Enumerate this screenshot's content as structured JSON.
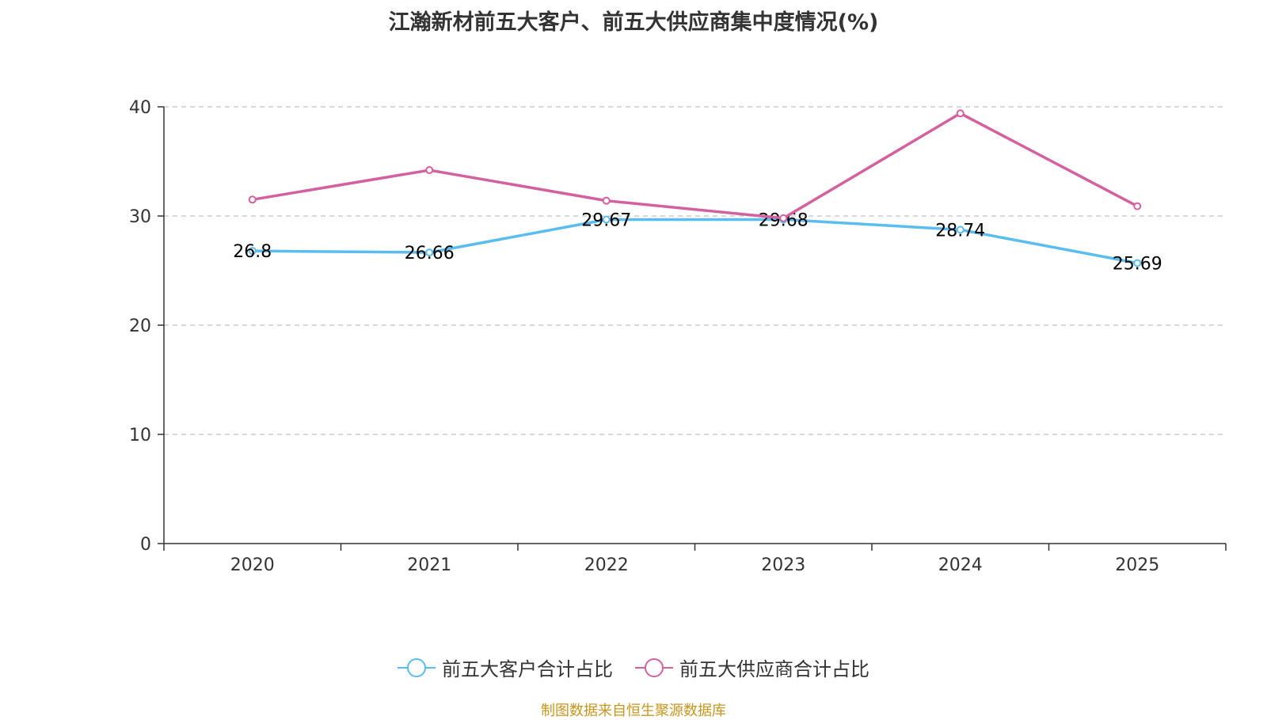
{
  "chart_data": {
    "type": "line",
    "title": "江瀚新材前五大客户、前五大供应商集中度情况(%)",
    "categories": [
      "2020",
      "2021",
      "2022",
      "2023",
      "2024",
      "2025"
    ],
    "ylim": [
      0,
      40
    ],
    "yticks": [
      0,
      10,
      20,
      30,
      40
    ],
    "grid": true,
    "legend_position": "bottom",
    "series": [
      {
        "name": "前五大客户合计占比",
        "color": "#5bbcf0",
        "values": [
          26.8,
          26.66,
          29.67,
          29.68,
          28.74,
          25.69
        ],
        "labels": [
          "26.8",
          "26.66",
          "29.67",
          "29.68",
          "28.74",
          "25.69"
        ]
      },
      {
        "name": "前五大供应商合计占比",
        "color": "#d3609f",
        "values": [
          31.5,
          34.2,
          31.4,
          29.8,
          39.4,
          30.9
        ]
      }
    ]
  },
  "source": "制图数据来自恒生聚源数据库"
}
